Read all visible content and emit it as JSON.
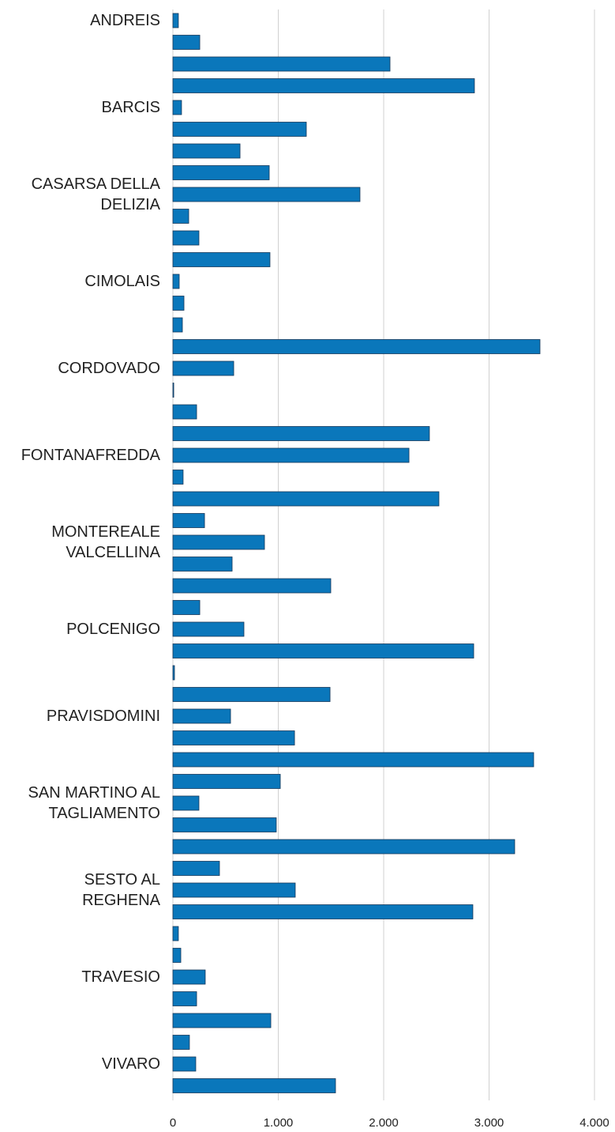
{
  "chart_data": {
    "type": "bar",
    "orientation": "horizontal",
    "color": "#0a77bb",
    "categories": [
      "ANDREIS",
      null,
      null,
      null,
      "BARCIS",
      null,
      null,
      null,
      "CASARSA DELLA\nDELIZIA",
      null,
      null,
      null,
      "CIMOLAIS",
      null,
      null,
      null,
      "CORDOVADO",
      null,
      null,
      null,
      "FONTANAFREDDA",
      null,
      null,
      null,
      "MONTEREALE\nVALCELLINA",
      null,
      null,
      null,
      "POLCENIGO",
      null,
      null,
      null,
      "PRAVISDOMINI",
      null,
      null,
      null,
      "SAN MARTINO AL\nTAGLIAMENTO",
      null,
      null,
      null,
      "SESTO AL\nREGHENA",
      null,
      null,
      null,
      "TRAVESIO",
      null,
      null,
      null,
      "VIVARO",
      null
    ],
    "values": [
      52,
      255,
      2060,
      2861,
      82,
      1266,
      637,
      914,
      1775,
      150,
      247,
      921,
      60,
      105,
      90,
      3483,
      577,
      8,
      225,
      2434,
      2240,
      97,
      2524,
      300,
      869,
      562,
      1498,
      255,
      674,
      2854,
      15,
      1491,
      547,
      1154,
      3423,
      1019,
      247,
      981,
      3243,
      442,
      1161,
      2846,
      52,
      75,
      307,
      225,
      929,
      157,
      217,
      1543
    ],
    "xlim": [
      0,
      4000
    ],
    "xticks": [
      0,
      {
        "value": 1000,
        "label": "1.000"
      },
      {
        "value": 2000,
        "label": "2.000"
      },
      {
        "value": 3000,
        "label": "3.000"
      },
      {
        "value": 4000,
        "label": "4.000"
      }
    ],
    "grid": true
  }
}
